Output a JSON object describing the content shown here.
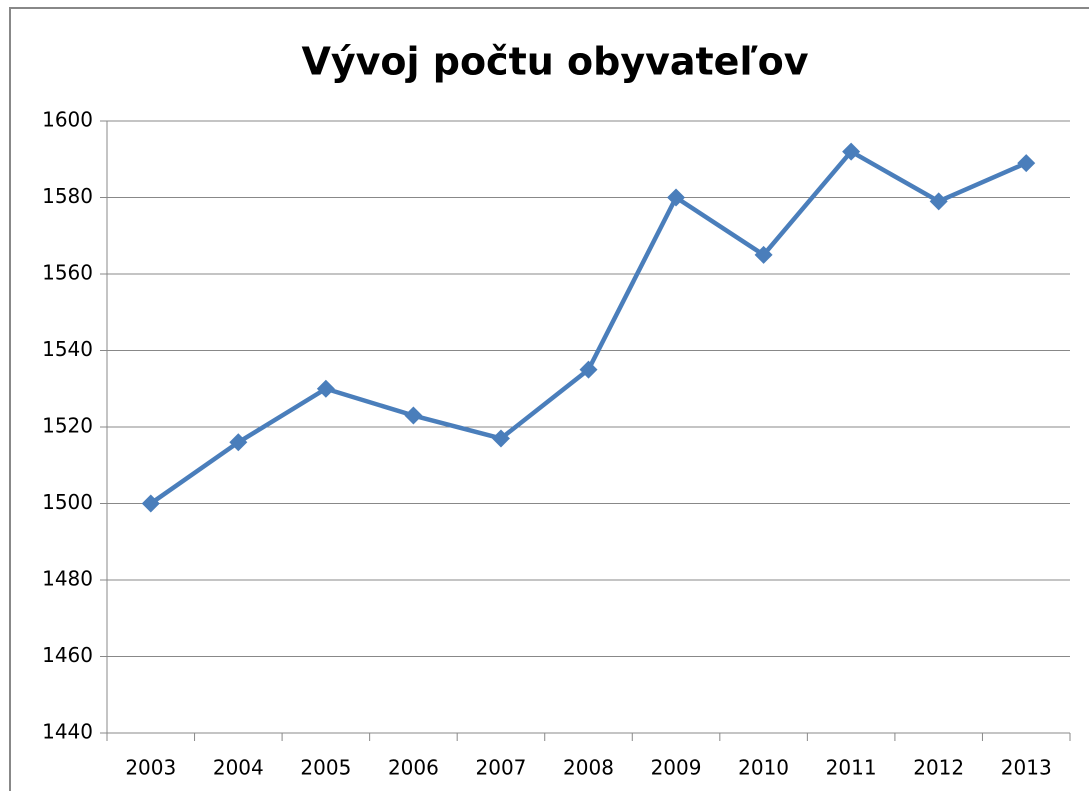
{
  "chart_data": {
    "type": "line",
    "title": "Vývoj počtu obyvateľov",
    "categories": [
      "2003",
      "2004",
      "2005",
      "2006",
      "2007",
      "2008",
      "2009",
      "2010",
      "2011",
      "2012",
      "2013"
    ],
    "series": [
      {
        "color": "#4a7ebb",
        "values": [
          1500,
          1516,
          1530,
          1523,
          1517,
          1535,
          1580,
          1565,
          1592,
          1579,
          1589
        ]
      }
    ],
    "ylim": [
      1440,
      1600
    ],
    "yticks": [
      1440,
      1460,
      1480,
      1500,
      1520,
      1540,
      1560,
      1580,
      1600
    ],
    "grid": true
  }
}
